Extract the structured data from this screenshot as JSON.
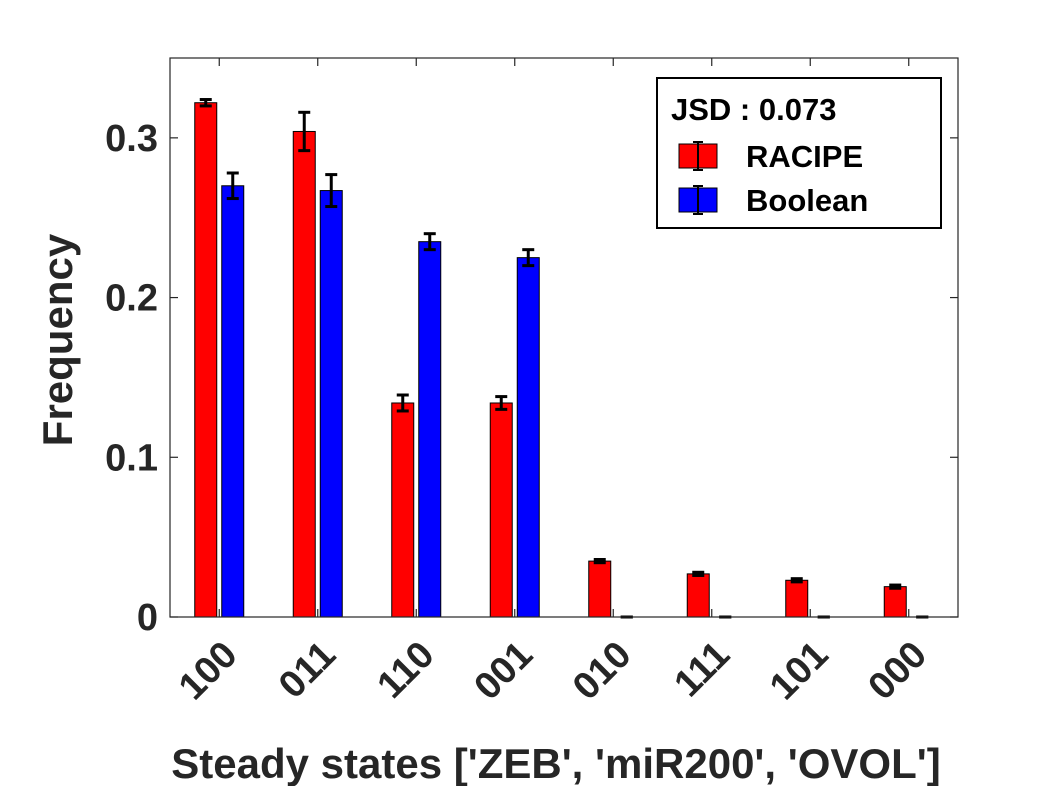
{
  "chart_data": {
    "type": "bar",
    "title": "",
    "xlabel": "Steady states ['ZEB', 'miR200', 'OVOL']",
    "ylabel": "Frequency",
    "ylim": [
      0,
      0.35
    ],
    "yticks": [
      0,
      0.1,
      0.2,
      0.3
    ],
    "ytick_labels": [
      "0",
      "0.1",
      "0.2",
      "0.3"
    ],
    "categories": [
      "100",
      "011",
      "110",
      "001",
      "010",
      "111",
      "101",
      "000"
    ],
    "series": [
      {
        "name": "RACIPE",
        "color": "#ff0000",
        "values": [
          0.322,
          0.304,
          0.134,
          0.134,
          0.035,
          0.027,
          0.023,
          0.019
        ],
        "errors": [
          0.002,
          0.012,
          0.005,
          0.004,
          0.001,
          0.001,
          0.001,
          0.001
        ]
      },
      {
        "name": "Boolean",
        "color": "#0000ff",
        "values": [
          0.27,
          0.267,
          0.235,
          0.225,
          0.0,
          0.0,
          0.0,
          0.0
        ],
        "errors": [
          0.008,
          0.01,
          0.005,
          0.005,
          0.0,
          0.0,
          0.0,
          0.0
        ]
      }
    ],
    "legend": {
      "title": "JSD : 0.073",
      "position": "top-right"
    },
    "grid": false,
    "box": true
  }
}
